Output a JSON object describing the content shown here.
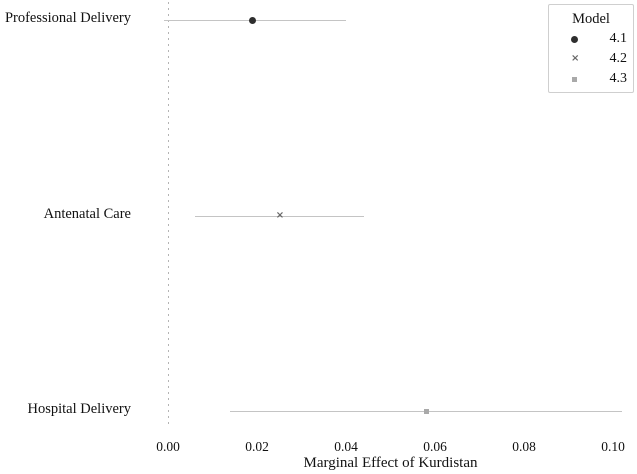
{
  "chart_data": {
    "type": "pointrange",
    "title": "",
    "xlabel": "Marginal Effect of Kurdistan",
    "ylabel": "",
    "xlim": [
      -0.006,
      0.105
    ],
    "grid": false,
    "x_ticks": [
      {
        "value": 0.0,
        "label": "0.00"
      },
      {
        "value": 0.02,
        "label": "0.02"
      },
      {
        "value": 0.04,
        "label": "0.04"
      },
      {
        "value": 0.06,
        "label": "0.06"
      },
      {
        "value": 0.08,
        "label": "0.08"
      },
      {
        "value": 0.1,
        "label": "0.10"
      }
    ],
    "reference_line": {
      "value": 0.0,
      "style": "dotted",
      "color": "#b4b4b4"
    },
    "ci_line_color": "#c4c4c4",
    "rows": [
      {
        "category": "Professional Delivery",
        "model": "4.1",
        "marker": "circle",
        "color": "#2e2e2e",
        "estimate": 0.019,
        "ci_low": -0.001,
        "ci_high": 0.04
      },
      {
        "category": "Antenatal Care",
        "model": "4.2",
        "marker": "x",
        "color": "#666666",
        "estimate": 0.025,
        "ci_low": 0.006,
        "ci_high": 0.044
      },
      {
        "category": "Hospital Delivery",
        "model": "4.3",
        "marker": "square",
        "color": "#a9a9a9",
        "estimate": 0.058,
        "ci_low": 0.014,
        "ci_high": 0.102
      }
    ],
    "legend": {
      "title": "Model",
      "position": "top-right",
      "entries": [
        {
          "marker": "circle",
          "color": "#2e2e2e",
          "label": "4.1"
        },
        {
          "marker": "x",
          "color": "#666666",
          "label": "4.2"
        },
        {
          "marker": "square",
          "color": "#a9a9a9",
          "label": "4.3"
        }
      ]
    }
  }
}
